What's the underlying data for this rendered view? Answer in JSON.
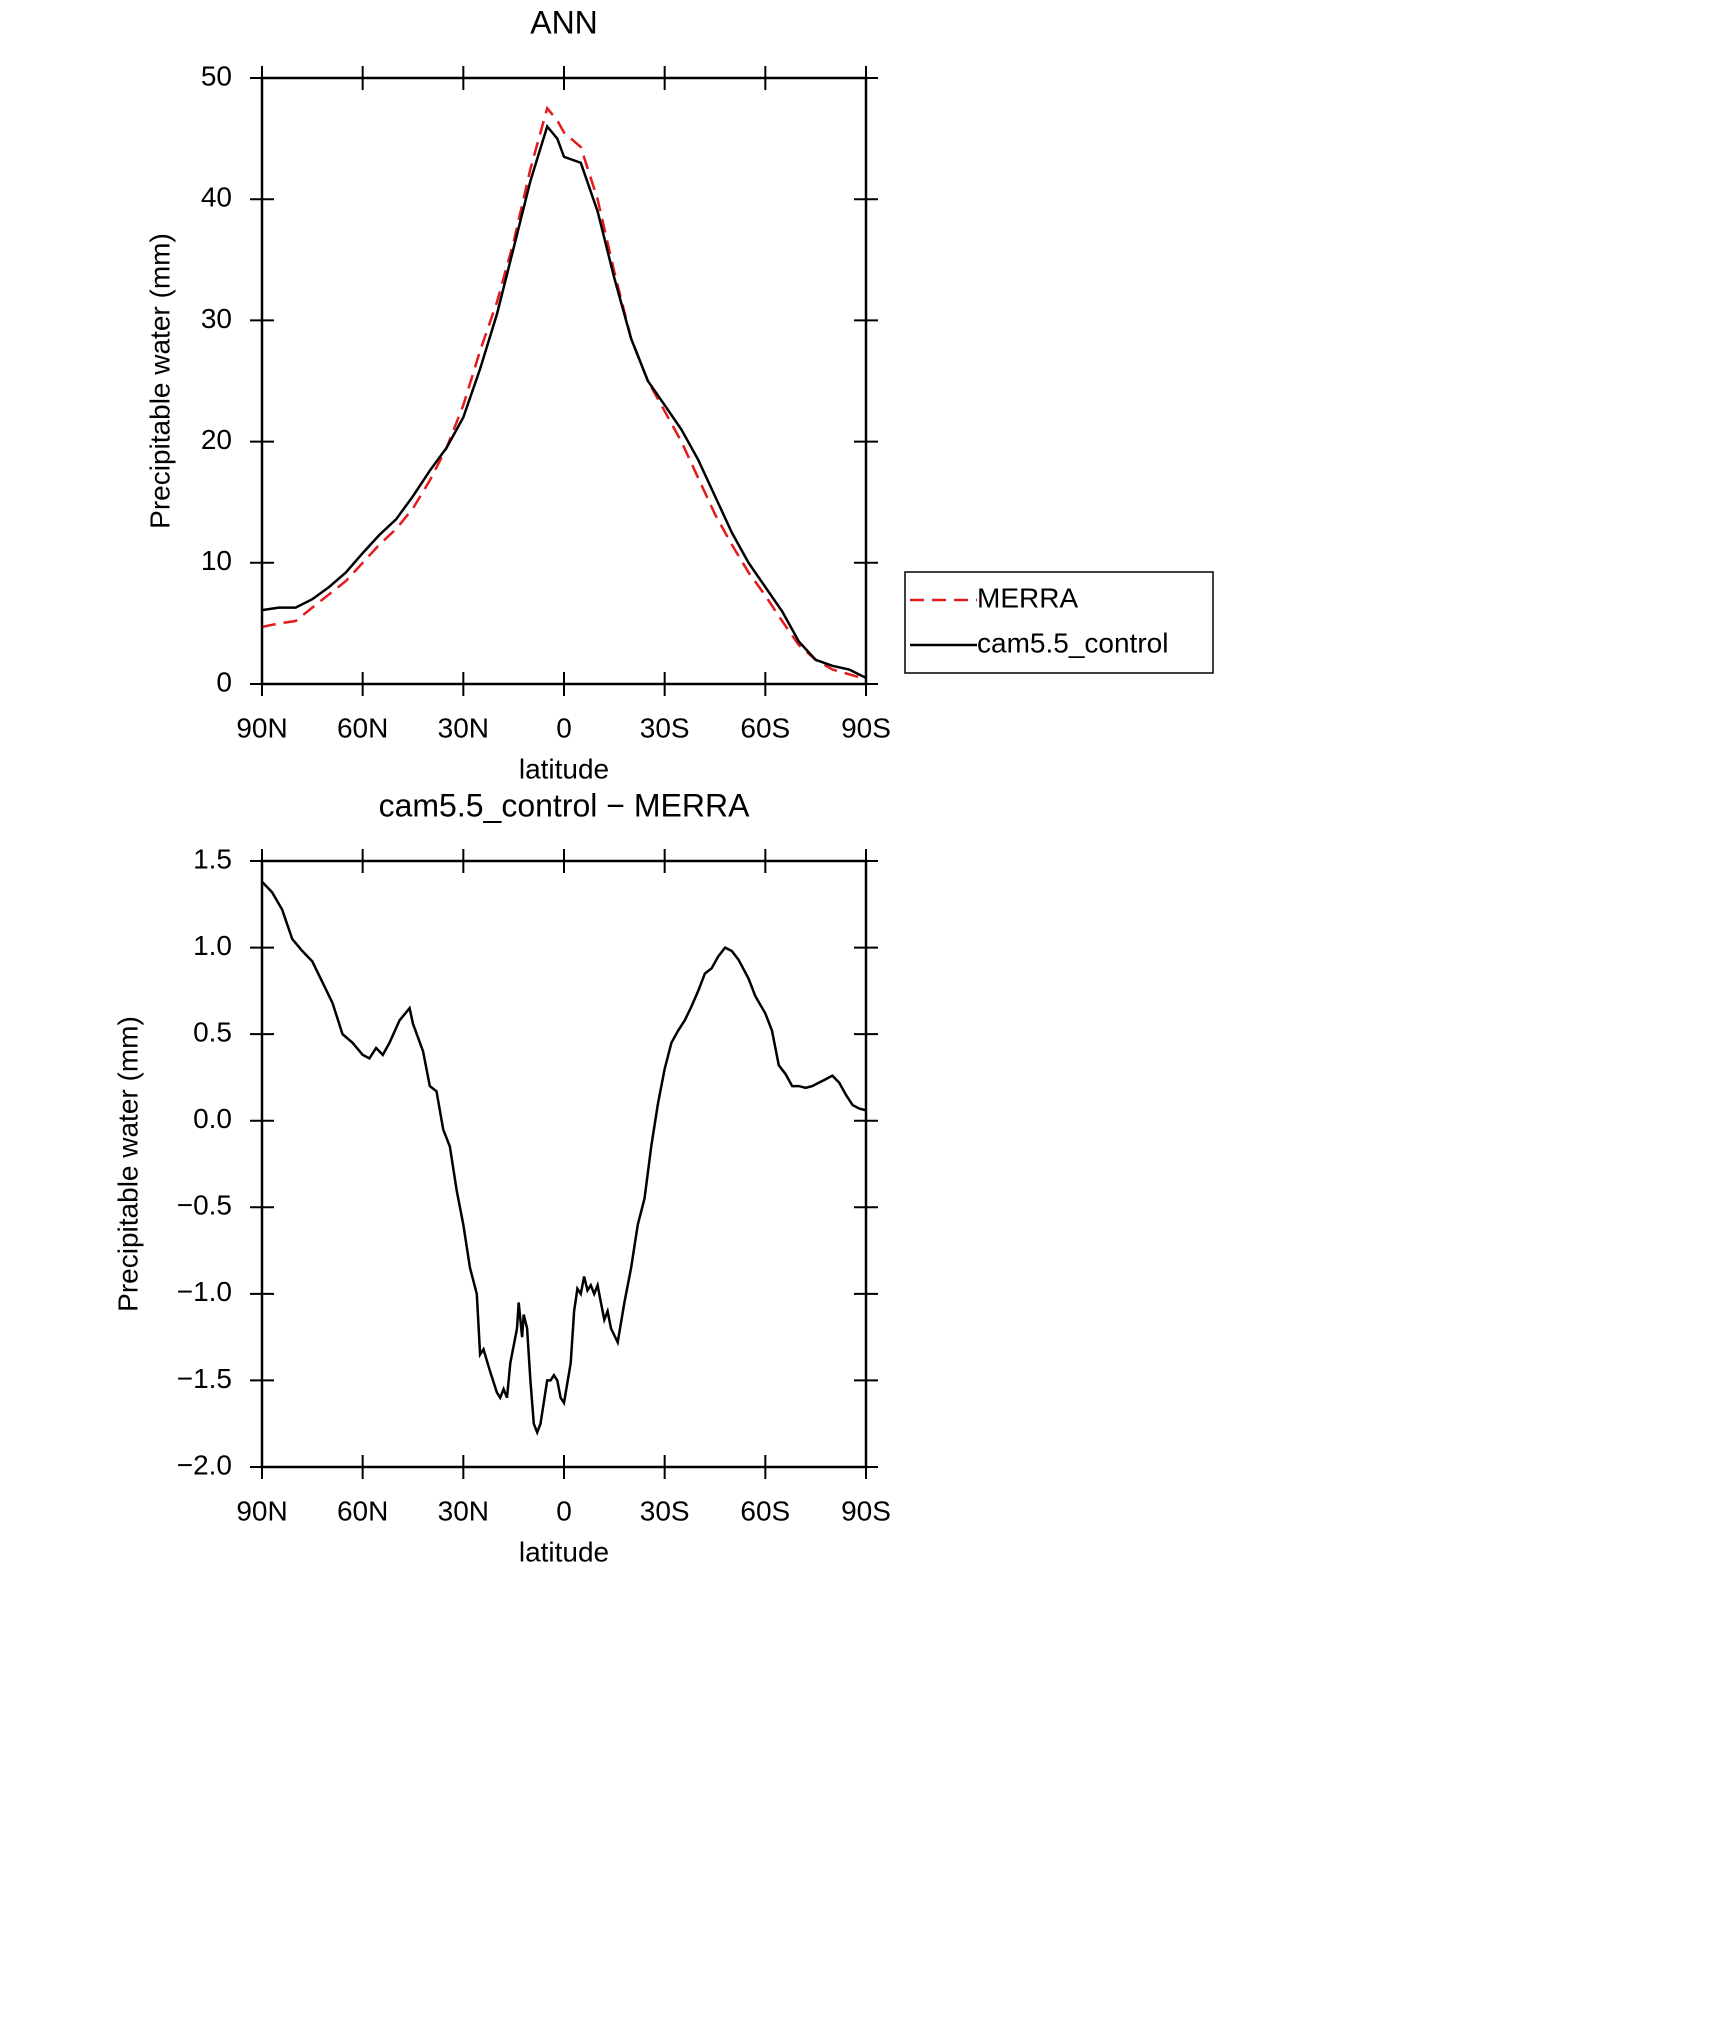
{
  "chart_data": [
    {
      "type": "line",
      "title": "ANN",
      "x_label": "latitude",
      "y_label": "Precipitable water (mm)",
      "x": [
        90,
        85,
        80,
        75,
        70,
        65,
        60,
        55,
        50,
        45,
        40,
        35,
        30,
        25,
        20,
        15,
        10,
        5,
        2,
        0,
        -5,
        -10,
        -15,
        -20,
        -25,
        -30,
        -35,
        -40,
        -45,
        -50,
        -55,
        -60,
        -65,
        -70,
        -75,
        -80,
        -85,
        -90
      ],
      "series": [
        {
          "name": "MERRA",
          "color": "#e41a1c",
          "dashed": true,
          "values": [
            4.7,
            5.0,
            5.2,
            6.3,
            7.4,
            8.5,
            10,
            11.5,
            12.8,
            14.5,
            16.8,
            19.5,
            23,
            27.5,
            31.5,
            36.5,
            42.5,
            47.5,
            46.5,
            45.5,
            44.3,
            40,
            34,
            28.5,
            25,
            22.5,
            20,
            17,
            14,
            11.5,
            9.2,
            7.3,
            5.2,
            3.2,
            2,
            1.2,
            0.8,
            0.4
          ]
        },
        {
          "name": "cam5.5_control",
          "color": "#000000",
          "dashed": false,
          "values": [
            6.1,
            6.3,
            6.3,
            7.0,
            8.0,
            9.2,
            10.8,
            12.3,
            13.6,
            15.5,
            17.6,
            19.5,
            22,
            26,
            30.5,
            36,
            41.5,
            46,
            45,
            43.5,
            43,
            39,
            33.5,
            28.5,
            25,
            23,
            21,
            18.5,
            15.5,
            12.5,
            10,
            8,
            6,
            3.5,
            2,
            1.5,
            1.2,
            0.5
          ]
        }
      ],
      "xlim": [
        90,
        -90
      ],
      "xticks": [
        {
          "value": 90,
          "label": "90N"
        },
        {
          "value": 60,
          "label": "60N"
        },
        {
          "value": 30,
          "label": "30N"
        },
        0,
        {
          "value": -30,
          "label": "30S"
        },
        {
          "value": -60,
          "label": "60S"
        },
        {
          "value": -90,
          "label": "90S"
        }
      ],
      "ylim": [
        0,
        50
      ],
      "yticks": [
        0,
        10,
        20,
        30,
        40,
        50
      ],
      "legend": "right"
    },
    {
      "type": "line",
      "title": "cam5.5_control − MERRA",
      "x_label": "latitude",
      "y_label": "Precipitable water (mm)",
      "x": [
        90,
        87,
        84,
        81,
        78,
        75,
        72,
        69,
        66,
        63,
        60,
        58,
        56,
        54,
        52,
        49,
        46,
        45,
        42,
        40,
        38,
        36,
        34,
        32,
        30,
        28,
        26,
        25,
        24,
        22,
        20,
        19,
        18,
        17,
        16,
        14,
        13.5,
        12.5,
        12,
        11,
        10,
        9,
        8,
        7,
        5,
        4,
        3,
        2,
        1,
        0,
        -2,
        -3,
        -4,
        -5,
        -6,
        -7,
        -8,
        -9,
        -10,
        -11,
        -12,
        -13,
        -14,
        -16,
        -18,
        -20,
        -22,
        -24,
        -26,
        -28,
        -30,
        -32,
        -34,
        -36,
        -38,
        -40,
        -42,
        -44,
        -46,
        -48,
        -50,
        -52,
        -55,
        -57,
        -60,
        -62,
        -64,
        -66,
        -68,
        -70,
        -72,
        -74,
        -76,
        -78,
        -80,
        -82,
        -84,
        -86,
        -88,
        -90
      ],
      "values": [
        1.38,
        1.32,
        1.22,
        1.05,
        0.98,
        0.92,
        0.8,
        0.68,
        0.5,
        0.45,
        0.38,
        0.36,
        0.42,
        0.38,
        0.45,
        0.58,
        0.65,
        0.56,
        0.4,
        0.2,
        0.17,
        -0.05,
        -0.15,
        -0.4,
        -0.6,
        -0.85,
        -1.0,
        -1.35,
        -1.32,
        -1.45,
        -1.57,
        -1.6,
        -1.55,
        -1.6,
        -1.4,
        -1.2,
        -1.05,
        -1.25,
        -1.12,
        -1.2,
        -1.5,
        -1.75,
        -1.8,
        -1.75,
        -1.5,
        -1.5,
        -1.47,
        -1.5,
        -1.6,
        -1.63,
        -1.4,
        -1.1,
        -0.97,
        -1.0,
        -0.9,
        -0.98,
        -0.95,
        -1.0,
        -0.95,
        -1.05,
        -1.15,
        -1.1,
        -1.2,
        -1.28,
        -1.05,
        -0.85,
        -0.6,
        -0.45,
        -0.15,
        0.1,
        0.3,
        0.45,
        0.52,
        0.58,
        0.66,
        0.75,
        0.85,
        0.88,
        0.95,
        1.0,
        0.98,
        0.93,
        0.82,
        0.72,
        0.62,
        0.52,
        0.32,
        0.27,
        0.2,
        0.2,
        0.19,
        0.2,
        0.22,
        0.24,
        0.26,
        0.22,
        0.15,
        0.09,
        0.07,
        0.06
      ],
      "color": "#000000",
      "xlim": [
        90,
        -90
      ],
      "xticks": [
        {
          "value": 90,
          "label": "90N"
        },
        {
          "value": 60,
          "label": "60N"
        },
        {
          "value": 30,
          "label": "30N"
        },
        0,
        {
          "value": -30,
          "label": "30S"
        },
        {
          "value": -60,
          "label": "60S"
        },
        {
          "value": -90,
          "label": "90S"
        }
      ],
      "ylim": [
        -2.0,
        1.5
      ],
      "yticks": [
        {
          "value": -2.0,
          "label": "−2.0"
        },
        {
          "value": -1.5,
          "label": "−1.5"
        },
        {
          "value": -1.0,
          "label": "−1.0"
        },
        {
          "value": -0.5,
          "label": "−0.5"
        },
        {
          "value": 0.0,
          "label": "0.0"
        },
        0.5,
        {
          "value": 1.0,
          "label": "1.0"
        },
        1.5
      ]
    }
  ]
}
